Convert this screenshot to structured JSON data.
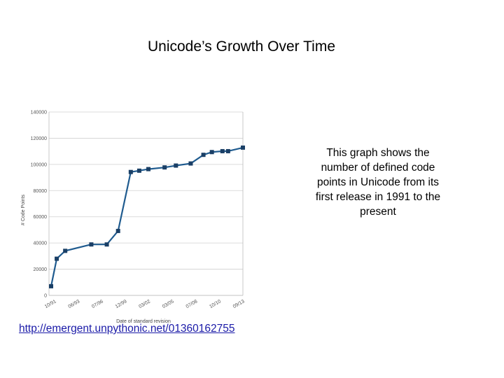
{
  "slide": {
    "title": "Unicode’s Growth Over Time",
    "caption": "This graph shows the number of defined code points in Unicode from its first release in 1991 to the present",
    "link_text": "http://emergent.unpythonic.net/01360162755"
  },
  "colors": {
    "line": "#1f5b8f",
    "marker": "#1a3f66",
    "grid": "#d0d0d0",
    "link": "#1a1aa8"
  },
  "chart_data": {
    "type": "line",
    "xlabel": "Date of standard revision",
    "ylabel": "# Code Points",
    "ylim": [
      0,
      140000
    ],
    "yticks": [
      "0",
      "20000",
      "40000",
      "60000",
      "80000",
      "100000",
      "120000",
      "140000"
    ],
    "xtick_labels": [
      "10/91",
      "06/93",
      "07/96",
      "12/99",
      "03/02",
      "03/05",
      "07/08",
      "10/10",
      "09/13"
    ],
    "grid": true,
    "series": [
      {
        "x": [
          "1991-10",
          "1992-06",
          "1993-06",
          "1996-07",
          "1998-05",
          "1999-09",
          "2001-03",
          "2002-03",
          "2003-04",
          "2005-03",
          "2006-07",
          "2008-04",
          "2009-10",
          "2010-10",
          "2012-01",
          "2012-09",
          "2014-06"
        ],
        "values": [
          7000,
          28000,
          34000,
          38900,
          38900,
          49200,
          94200,
          95200,
          96400,
          97700,
          99100,
          100700,
          107300,
          109400,
          110100,
          110100,
          112800
        ]
      }
    ]
  }
}
